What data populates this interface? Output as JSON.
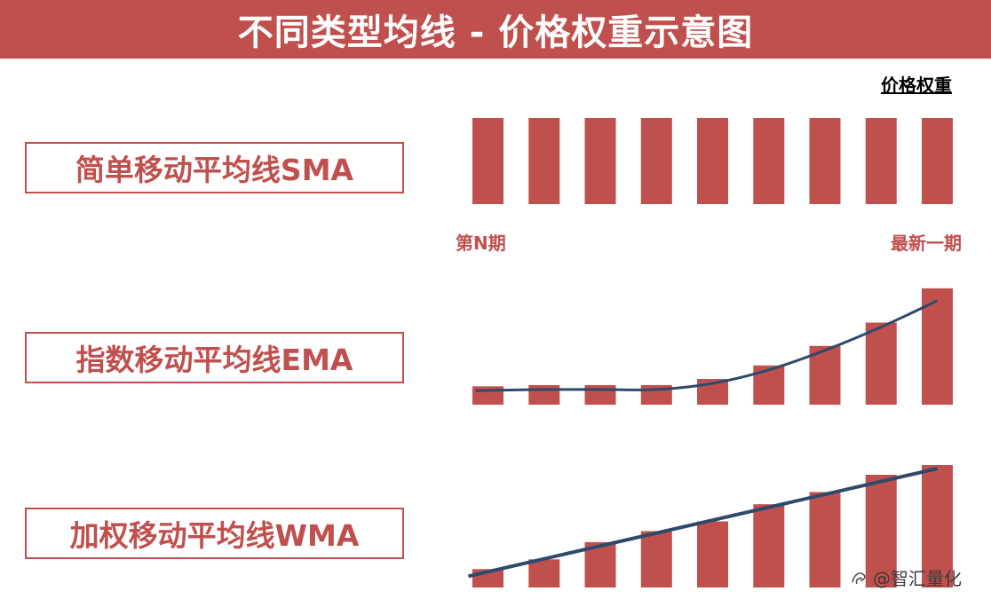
{
  "header": {
    "title": "不同类型均线 - 价格权重示意图"
  },
  "weight_label": "价格权重",
  "axis": {
    "left_label": "第N期",
    "right_label": "最新一期"
  },
  "watermark": {
    "text": "@智汇量化"
  },
  "colors": {
    "bar": "#c0504d",
    "line": "#2e4a6b",
    "header_bg": "#c0504d"
  },
  "chart_data": [
    {
      "type": "bar",
      "name_label": "简单移动平均线SMA",
      "values": [
        10,
        10,
        10,
        10,
        10,
        10,
        10,
        10,
        10
      ],
      "ylim": [
        0,
        10
      ]
    },
    {
      "type": "bar",
      "name_label": "指数移动平均线EMA",
      "values": [
        1.5,
        1.6,
        1.6,
        1.6,
        2.1,
        3.2,
        4.8,
        6.7,
        9.5
      ],
      "trend": "curve",
      "ylim": [
        0,
        10
      ]
    },
    {
      "type": "bar",
      "name_label": "加权移动平均线WMA",
      "values": [
        1.5,
        2.3,
        3.7,
        4.6,
        5.4,
        6.8,
        7.8,
        9.2,
        10
      ],
      "trend": "linear",
      "ylim": [
        0,
        10
      ]
    }
  ]
}
